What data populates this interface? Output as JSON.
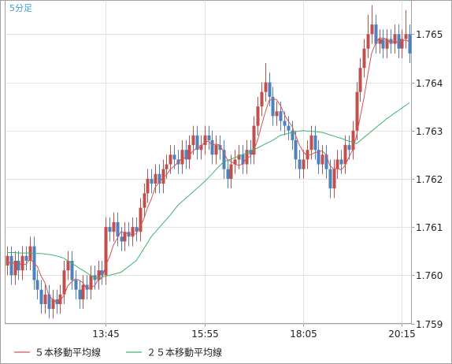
{
  "chart_data": {
    "type": "candlestick",
    "timeframe": "5分足",
    "timeframe_color": "#3a9ad9",
    "up_color": "#c0504d",
    "down_color": "#4f81bd",
    "grid": true,
    "categories": [
      null,
      null,
      null,
      null,
      null,
      null,
      null,
      null,
      null,
      null,
      null,
      null,
      null,
      null,
      null,
      null,
      null,
      null,
      null,
      null,
      null,
      null,
      null,
      null,
      null,
      null,
      "13:45",
      null,
      null,
      null,
      null,
      null,
      null,
      null,
      null,
      null,
      null,
      null,
      null,
      null,
      null,
      null,
      null,
      null,
      null,
      null,
      null,
      null,
      null,
      null,
      null,
      null,
      "15:55",
      null,
      null,
      null,
      null,
      null,
      null,
      null,
      null,
      null,
      null,
      null,
      null,
      null,
      null,
      null,
      null,
      null,
      null,
      null,
      null,
      null,
      null,
      null,
      null,
      null,
      "18:05",
      null,
      null,
      null,
      null,
      null,
      null,
      null,
      null,
      null,
      null,
      null,
      null,
      null,
      null,
      null,
      null,
      null,
      null,
      null,
      null,
      null,
      null,
      null,
      null,
      null,
      "20:15",
      null,
      null
    ],
    "open": [
      1.7602,
      1.7604,
      1.76,
      1.7603,
      1.7601,
      1.7604,
      1.7603,
      1.7606,
      1.7599,
      1.7597,
      1.7594,
      1.7596,
      1.7593,
      1.7595,
      1.7594,
      1.7596,
      1.7601,
      1.7603,
      1.7599,
      1.7597,
      1.7595,
      1.7598,
      1.7597,
      1.76,
      1.7599,
      1.7601,
      1.76,
      1.761,
      1.7609,
      1.7611,
      1.7608,
      1.7607,
      1.7609,
      1.7608,
      1.761,
      1.7609,
      1.7614,
      1.7617,
      1.762,
      1.7619,
      1.7621,
      1.7619,
      1.7622,
      1.7623,
      1.7625,
      1.7624,
      1.7623,
      1.7626,
      1.7624,
      1.7627,
      1.7629,
      1.7626,
      1.7627,
      1.7629,
      1.7628,
      1.7625,
      1.7627,
      1.7626,
      1.7622,
      1.762,
      1.7623,
      1.7624,
      1.7625,
      1.7623,
      1.7626,
      1.7625,
      1.7631,
      1.7635,
      1.7638,
      1.764,
      1.7637,
      1.7633,
      1.7634,
      1.7632,
      1.7631,
      1.763,
      1.7628,
      1.7624,
      1.7622,
      1.7624,
      1.7626,
      1.7629,
      1.7626,
      1.7623,
      1.7625,
      1.7622,
      1.7618,
      1.7622,
      1.7624,
      1.7623,
      1.7627,
      1.7626,
      1.763,
      1.7638,
      1.7643,
      1.7647,
      1.765,
      1.7652,
      1.7648,
      1.7649,
      1.7647,
      1.7649,
      1.7648,
      1.765,
      1.7647,
      1.7649,
      1.765
    ],
    "high": [
      1.7606,
      1.7606,
      1.7605,
      1.7605,
      1.7606,
      1.7606,
      1.7608,
      1.7608,
      1.7601,
      1.7599,
      1.7598,
      1.7598,
      1.7597,
      1.7597,
      1.7598,
      1.7603,
      1.7605,
      1.7605,
      1.7601,
      1.7599,
      1.76,
      1.76,
      1.7602,
      1.7602,
      1.7603,
      1.7603,
      1.7612,
      1.7612,
      1.7613,
      1.7613,
      1.761,
      1.7611,
      1.7611,
      1.7612,
      1.7612,
      1.7616,
      1.7619,
      1.7622,
      1.7622,
      1.7623,
      1.7623,
      1.7624,
      1.7625,
      1.7627,
      1.7627,
      1.7626,
      1.7628,
      1.7628,
      1.7629,
      1.7631,
      1.7631,
      1.7629,
      1.7631,
      1.7631,
      1.763,
      1.7629,
      1.7629,
      1.7628,
      1.7624,
      1.7625,
      1.7626,
      1.7627,
      1.7627,
      1.7628,
      1.7628,
      1.7633,
      1.7637,
      1.764,
      1.7644,
      1.7642,
      1.7639,
      1.7636,
      1.7636,
      1.7634,
      1.7633,
      1.7632,
      1.763,
      1.7626,
      1.7626,
      1.7628,
      1.7631,
      1.7631,
      1.7628,
      1.7627,
      1.7627,
      1.7624,
      1.7624,
      1.7626,
      1.7626,
      1.7629,
      1.7629,
      1.7632,
      1.764,
      1.7645,
      1.7649,
      1.7654,
      1.7656,
      1.7654,
      1.7651,
      1.7651,
      1.7651,
      1.7651,
      1.7652,
      1.7652,
      1.7651,
      1.7655,
      1.7652
    ],
    "low": [
      1.76,
      1.7598,
      1.7598,
      1.7599,
      1.7599,
      1.7601,
      1.7601,
      1.7597,
      1.7595,
      1.7592,
      1.7592,
      1.7591,
      1.7591,
      1.7592,
      1.7592,
      1.7594,
      1.7599,
      1.7597,
      1.7595,
      1.7593,
      1.7593,
      1.7595,
      1.7595,
      1.7597,
      1.7597,
      1.7598,
      1.7598,
      1.7607,
      1.7607,
      1.7606,
      1.7605,
      1.7605,
      1.7606,
      1.7606,
      1.7607,
      1.7607,
      1.7612,
      1.7615,
      1.7617,
      1.7617,
      1.7617,
      1.7617,
      1.762,
      1.7621,
      1.7622,
      1.7621,
      1.7621,
      1.7622,
      1.7622,
      1.7625,
      1.7624,
      1.7624,
      1.7625,
      1.7626,
      1.7623,
      1.7623,
      1.7624,
      1.762,
      1.7618,
      1.7618,
      1.7621,
      1.7622,
      1.7621,
      1.7621,
      1.7623,
      1.7623,
      1.7629,
      1.7633,
      1.7636,
      1.7635,
      1.7631,
      1.7631,
      1.763,
      1.7629,
      1.7628,
      1.7626,
      1.7622,
      1.762,
      1.762,
      1.7622,
      1.7624,
      1.7624,
      1.7621,
      1.7621,
      1.762,
      1.7616,
      1.7616,
      1.762,
      1.7621,
      1.7621,
      1.7624,
      1.7624,
      1.7628,
      1.7636,
      1.7641,
      1.7645,
      1.7648,
      1.7646,
      1.7646,
      1.7645,
      1.7645,
      1.7646,
      1.7646,
      1.7645,
      1.7645,
      1.7647,
      1.7644
    ],
    "close": [
      1.7604,
      1.76,
      1.7603,
      1.7601,
      1.7604,
      1.7603,
      1.7606,
      1.7599,
      1.7597,
      1.7594,
      1.7596,
      1.7593,
      1.7595,
      1.7594,
      1.7596,
      1.7601,
      1.7603,
      1.7599,
      1.7597,
      1.7595,
      1.7598,
      1.7597,
      1.76,
      1.7599,
      1.7601,
      1.76,
      1.761,
      1.7609,
      1.7611,
      1.7608,
      1.7607,
      1.7609,
      1.7608,
      1.761,
      1.7609,
      1.7614,
      1.7617,
      1.762,
      1.7619,
      1.7621,
      1.7619,
      1.7622,
      1.7623,
      1.7625,
      1.7624,
      1.7623,
      1.7626,
      1.7624,
      1.7627,
      1.7629,
      1.7626,
      1.7627,
      1.7629,
      1.7628,
      1.7625,
      1.7627,
      1.7626,
      1.7622,
      1.762,
      1.7623,
      1.7624,
      1.7625,
      1.7623,
      1.7626,
      1.7625,
      1.7631,
      1.7635,
      1.7638,
      1.764,
      1.7637,
      1.7633,
      1.7634,
      1.7632,
      1.7631,
      1.763,
      1.7628,
      1.7624,
      1.7622,
      1.7624,
      1.7626,
      1.7629,
      1.7626,
      1.7623,
      1.7625,
      1.7622,
      1.7618,
      1.7622,
      1.7624,
      1.7623,
      1.7627,
      1.7626,
      1.763,
      1.7638,
      1.7643,
      1.7647,
      1.765,
      1.7652,
      1.7648,
      1.7649,
      1.7647,
      1.7649,
      1.7648,
      1.765,
      1.7647,
      1.7649,
      1.765,
      1.7646
    ],
    "series": [
      {
        "name": "５本移動平均線",
        "color": "#d9534f",
        "values": [
          1.7603,
          1.76024,
          1.76026,
          1.76022,
          1.76024,
          1.76022,
          1.76034,
          1.76026,
          1.76018,
          1.75998,
          1.75984,
          1.75958,
          1.7595,
          1.75944,
          1.75948,
          1.75958,
          1.75978,
          1.75986,
          1.75992,
          1.7599,
          1.75984,
          1.75972,
          1.75974,
          1.75978,
          1.7599,
          1.75994,
          1.7602,
          1.76038,
          1.76062,
          1.76076,
          1.7609,
          1.76088,
          1.76086,
          1.76084,
          1.76086,
          1.761,
          1.76116,
          1.7614,
          1.76158,
          1.76182,
          1.76192,
          1.76202,
          1.76208,
          1.7622,
          1.76226,
          1.76234,
          1.76242,
          1.76244,
          1.76248,
          1.76258,
          1.76264,
          1.76266,
          1.76276,
          1.76278,
          1.7627,
          1.76272,
          1.7627,
          1.76256,
          1.7624,
          1.76236,
          1.7623,
          1.76228,
          1.7623,
          1.76242,
          1.76246,
          1.7626,
          1.7628,
          1.7631,
          1.76338,
          1.76362,
          1.76366,
          1.76364,
          1.76352,
          1.76334,
          1.7632,
          1.7631,
          1.7629,
          1.7627,
          1.76256,
          1.76248,
          1.7625,
          1.76254,
          1.76256,
          1.76258,
          1.7625,
          1.76228,
          1.7622,
          1.76222,
          1.76218,
          1.76228,
          1.76244,
          1.7626,
          1.76288,
          1.76328,
          1.76368,
          1.76416,
          1.7646,
          1.7648,
          1.76492,
          1.76492,
          1.7649,
          1.76482,
          1.76486,
          1.76482,
          1.76486,
          1.76488,
          1.76484
        ]
      },
      {
        "name": "２５本移動平均線",
        "color": "#3cb371",
        "values": [
          1.76047,
          1.76047,
          1.76047,
          1.76046,
          1.76046,
          1.76046,
          1.76046,
          1.76045,
          1.76045,
          1.76045,
          1.76044,
          1.76043,
          1.76042,
          1.7604,
          1.76038,
          1.76035,
          1.7603,
          1.76025,
          1.7602,
          1.76015,
          1.7601,
          1.76005,
          1.76,
          1.75995,
          1.75995,
          1.75996,
          1.75998,
          1.76,
          1.76002,
          1.76004,
          1.76006,
          1.76012,
          1.76018,
          1.76024,
          1.7603,
          1.76042,
          1.76055,
          1.76067,
          1.7608,
          1.76089,
          1.76098,
          1.76107,
          1.76116,
          1.76125,
          1.76135,
          1.76145,
          1.76152,
          1.76159,
          1.76166,
          1.76173,
          1.7618,
          1.76187,
          1.76194,
          1.76202,
          1.7621,
          1.76219,
          1.76227,
          1.76235,
          1.76238,
          1.76241,
          1.76244,
          1.76247,
          1.7625,
          1.76253,
          1.76257,
          1.7626,
          1.76264,
          1.76268,
          1.76272,
          1.76276,
          1.7628,
          1.76285,
          1.7629,
          1.76292,
          1.76294,
          1.76296,
          1.76298,
          1.76299,
          1.763,
          1.76299,
          1.76299,
          1.76298,
          1.76297,
          1.76296,
          1.76294,
          1.76291,
          1.76289,
          1.76286,
          1.76284,
          1.76281,
          1.76278,
          1.76276,
          1.76273,
          1.76279,
          1.76286,
          1.76292,
          1.76299,
          1.76305,
          1.76312,
          1.76318,
          1.76325,
          1.7633,
          1.76336,
          1.76341,
          1.76347,
          1.76352,
          1.76358
        ]
      }
    ],
    "ylim": [
      1.759,
      1.7657
    ],
    "yticks": [
      1.759,
      {
        "value": 1.76,
        "label": "1.760"
      },
      1.761,
      1.762,
      1.763,
      1.764,
      1.765
    ]
  }
}
